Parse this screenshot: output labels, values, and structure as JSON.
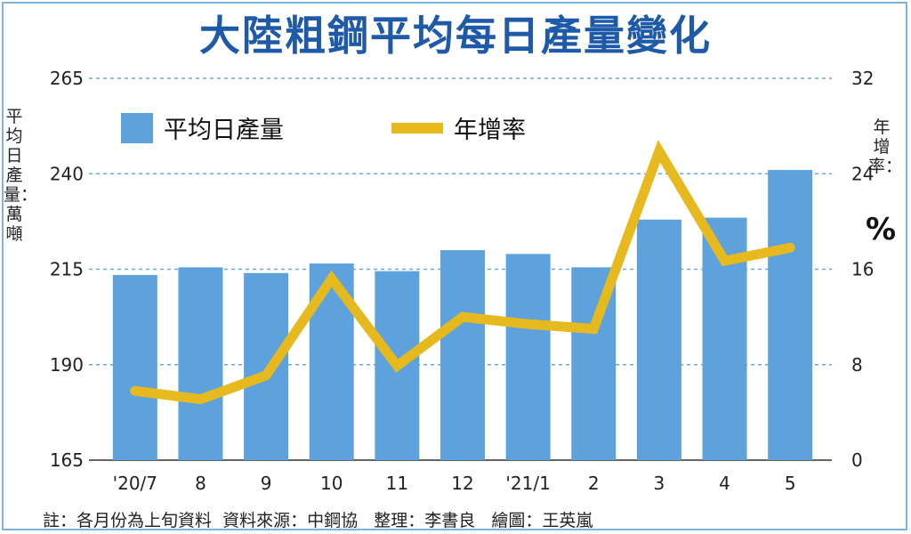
{
  "title": "大陸粗鋼平均每日產量變化",
  "left_axis_label": "平均日產量：萬噸",
  "right_axis_label": "年增率：",
  "right_axis_unit": "%",
  "footnote": "註：各月份為上旬資料  資料來源：中鋼協   整理：李書良   繪圖：王英嵐",
  "colors": {
    "bar": "#5da2dc",
    "line": "#e6b91e",
    "grid": "#6aa8d8",
    "title": "#1f5aa8"
  },
  "chart_data": {
    "type": "bar",
    "title": "大陸粗鋼平均每日產量變化",
    "categories": [
      "'20/7",
      "8",
      "9",
      "10",
      "11",
      "12",
      "'21/1",
      "2",
      "3",
      "4",
      "5"
    ],
    "series": [
      {
        "name": "平均日產量",
        "type": "bar",
        "axis": "left",
        "values": [
          213.5,
          215.5,
          214,
          216.5,
          214.5,
          220,
          219,
          215.5,
          228,
          228.5,
          241
        ]
      },
      {
        "name": "年增率",
        "type": "line",
        "axis": "right",
        "values": [
          5.8,
          5.1,
          7.1,
          15.2,
          7.9,
          12,
          11.4,
          11,
          25.9,
          16.7,
          17.8
        ]
      }
    ],
    "left_axis": {
      "label": "平均日產量：萬噸",
      "ylim": [
        165,
        265
      ],
      "ticks": [
        265,
        240,
        215,
        190,
        165
      ]
    },
    "right_axis": {
      "label": "年增率：%",
      "ylim": [
        0,
        32
      ],
      "ticks": [
        32,
        24,
        16,
        8,
        0
      ]
    },
    "grid": true,
    "legend": {
      "position": "top-left",
      "items": [
        {
          "name": "平均日產量",
          "kind": "bar"
        },
        {
          "name": "年增率",
          "kind": "line"
        }
      ]
    }
  }
}
